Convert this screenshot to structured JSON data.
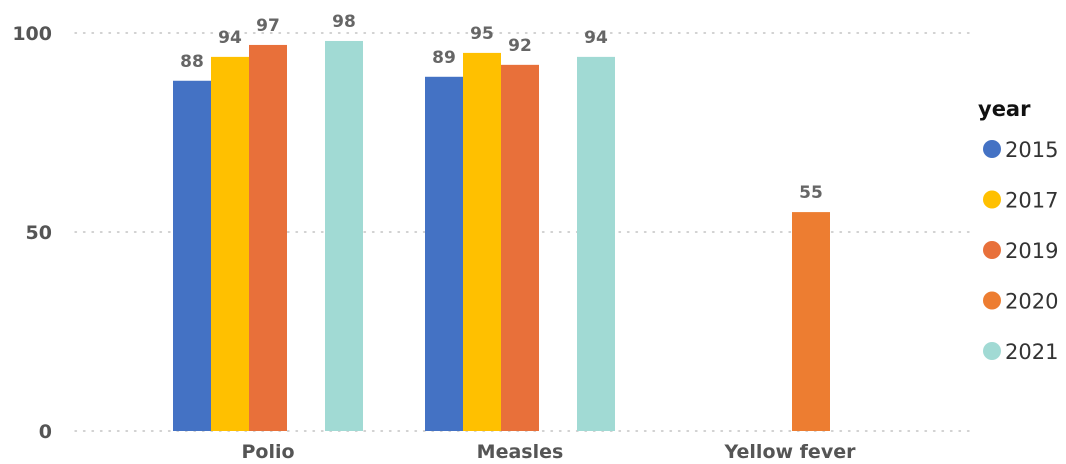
{
  "chart_data": {
    "type": "bar",
    "title": "",
    "xlabel": "",
    "ylabel": "",
    "categories": [
      "Polio",
      "Measles",
      "Yellow fever"
    ],
    "series": [
      {
        "name": "2015",
        "color": "#4472C4",
        "values": [
          88,
          89,
          null
        ]
      },
      {
        "name": "2017",
        "color": "#FFC000",
        "values": [
          94,
          95,
          null
        ]
      },
      {
        "name": "2019",
        "color": "#E8703A",
        "values": [
          97,
          92,
          null
        ]
      },
      {
        "name": "2020",
        "color": "#ED7D31",
        "values": [
          null,
          null,
          55
        ]
      },
      {
        "name": "2021",
        "color": "#A1DAD4",
        "values": [
          98,
          94,
          null
        ]
      }
    ],
    "yticks": [
      0,
      50,
      100
    ],
    "ylim": [
      0,
      100
    ],
    "grid": "horizontal-dotted",
    "legend": {
      "title": "year",
      "placement": "right"
    }
  }
}
